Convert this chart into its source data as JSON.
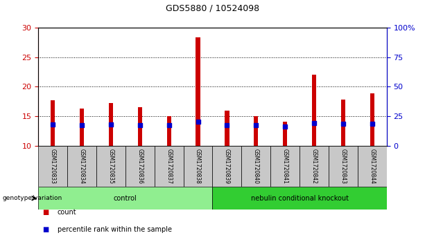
{
  "title": "GDS5880 / 10524098",
  "samples": [
    "GSM1720833",
    "GSM1720834",
    "GSM1720835",
    "GSM1720836",
    "GSM1720837",
    "GSM1720838",
    "GSM1720839",
    "GSM1720840",
    "GSM1720841",
    "GSM1720842",
    "GSM1720843",
    "GSM1720844"
  ],
  "counts": [
    17.7,
    16.3,
    17.2,
    16.5,
    15.0,
    28.3,
    15.9,
    15.0,
    14.0,
    22.0,
    17.8,
    18.8
  ],
  "percentile_ranks": [
    18.0,
    17.6,
    18.0,
    17.2,
    17.2,
    20.0,
    17.5,
    17.2,
    16.4,
    19.2,
    18.4,
    18.5
  ],
  "ylim_left": [
    10,
    30
  ],
  "ylim_right": [
    0,
    100
  ],
  "yticks_left": [
    10,
    15,
    20,
    25,
    30
  ],
  "yticks_right": [
    0,
    25,
    50,
    75,
    100
  ],
  "ytick_labels_right": [
    "0",
    "25",
    "50",
    "75",
    "100%"
  ],
  "bar_color": "#cc0000",
  "dot_color": "#0000cc",
  "groups": [
    {
      "label": "control",
      "indices": [
        0,
        1,
        2,
        3,
        4,
        5
      ],
      "color": "#90EE90"
    },
    {
      "label": "nebulin conditional knockout",
      "indices": [
        6,
        7,
        8,
        9,
        10,
        11
      ],
      "color": "#32CD32"
    }
  ],
  "group_row_label": "genotype/variation",
  "legend_items": [
    {
      "label": "count",
      "color": "#cc0000"
    },
    {
      "label": "percentile rank within the sample",
      "color": "#0000cc"
    }
  ],
  "bar_width": 0.15,
  "tick_color_left": "#cc0000",
  "tick_color_right": "#0000cc",
  "sample_box_color": "#c8c8c8",
  "figure_bg": "#ffffff"
}
